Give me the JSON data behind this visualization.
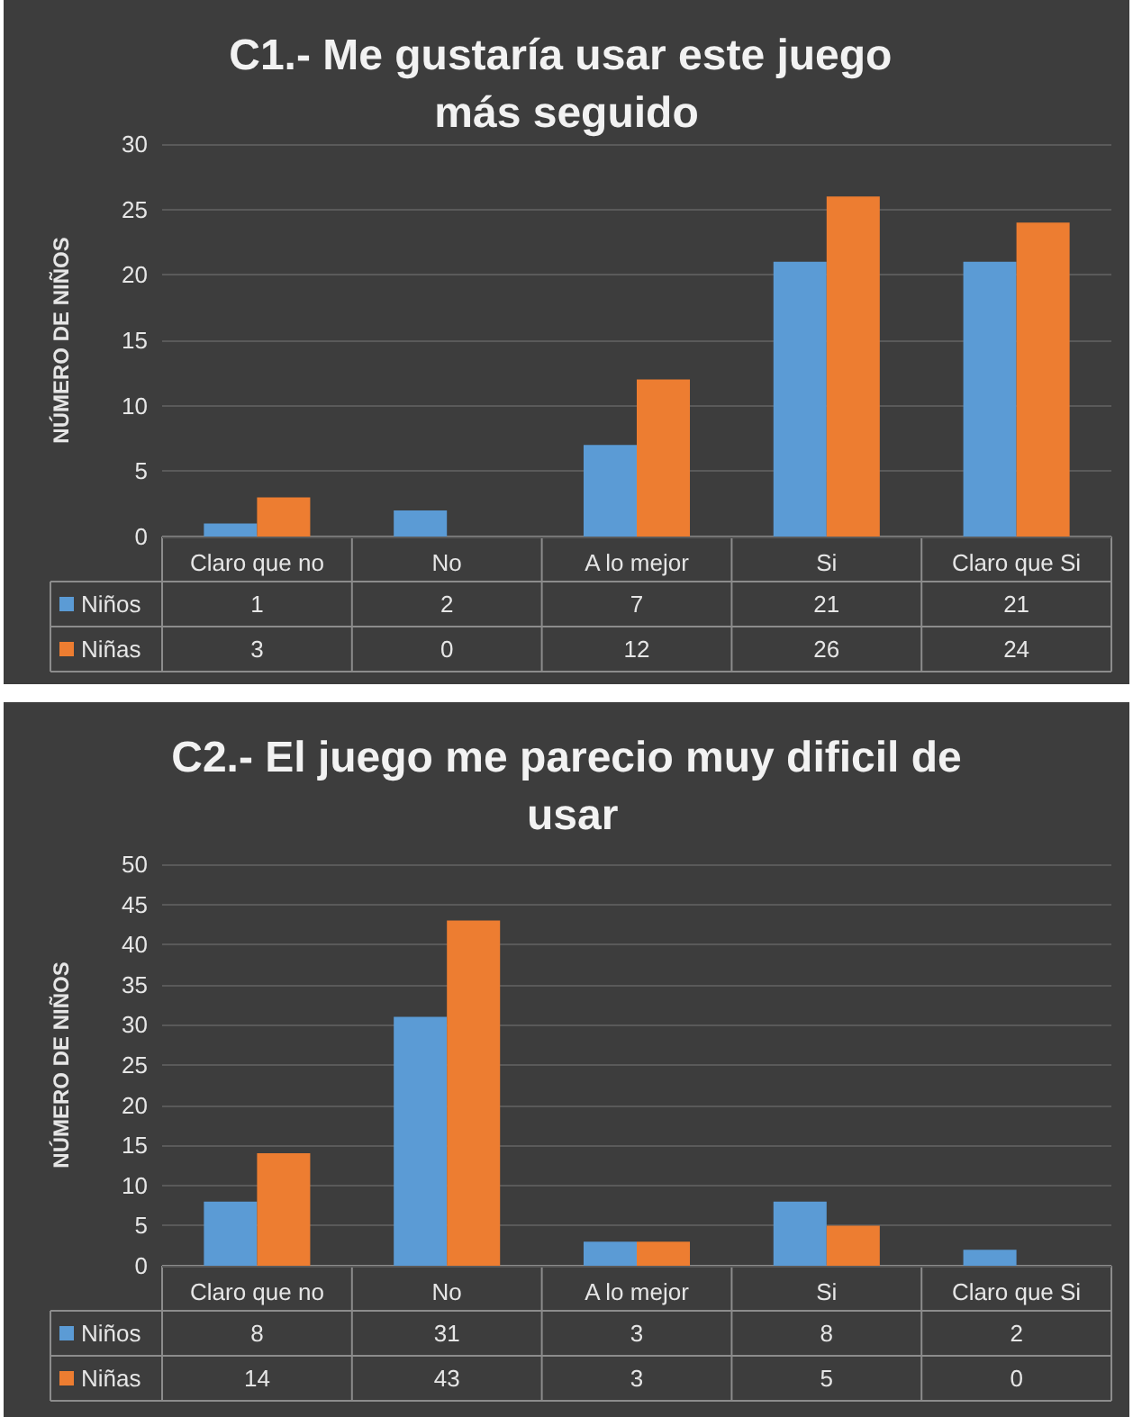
{
  "chart_data": [
    {
      "type": "bar",
      "title": "C1.- Me gustaría usar este juego más seguido",
      "ylabel": "NÚMERO DE NIÑOS",
      "categories": [
        "Claro que no",
        "No",
        "A lo mejor",
        "Si",
        "Claro que Si"
      ],
      "series": [
        {
          "name": "Niños",
          "color": "#5b9bd5",
          "values": [
            1,
            2,
            7,
            21,
            21
          ]
        },
        {
          "name": "Niñas",
          "color": "#ed7d31",
          "values": [
            3,
            0,
            12,
            26,
            24
          ]
        }
      ],
      "ylim": [
        0,
        30
      ],
      "yticks": [
        0,
        5,
        10,
        15,
        20,
        25,
        30
      ],
      "grid": "y",
      "data_labels": true,
      "legend": "bottom left"
    },
    {
      "type": "bar",
      "title": "C2.- El juego me parecio muy dificil de usar",
      "ylabel": "NÚMERO DE NIÑOS",
      "categories": [
        "Claro que no",
        "No",
        "A lo mejor",
        "Si",
        "Claro que Si"
      ],
      "series": [
        {
          "name": "Niños",
          "color": "#5b9bd5",
          "values": [
            8,
            31,
            3,
            8,
            2
          ]
        },
        {
          "name": "Niñas",
          "color": "#ed7d31",
          "values": [
            14,
            43,
            3,
            5,
            0
          ]
        }
      ],
      "ylim": [
        0,
        50
      ],
      "yticks": [
        0,
        5,
        10,
        15,
        20,
        25,
        30,
        35,
        40,
        45,
        50
      ],
      "grid": "y",
      "data_labels": true,
      "legend": "bottom left"
    }
  ]
}
